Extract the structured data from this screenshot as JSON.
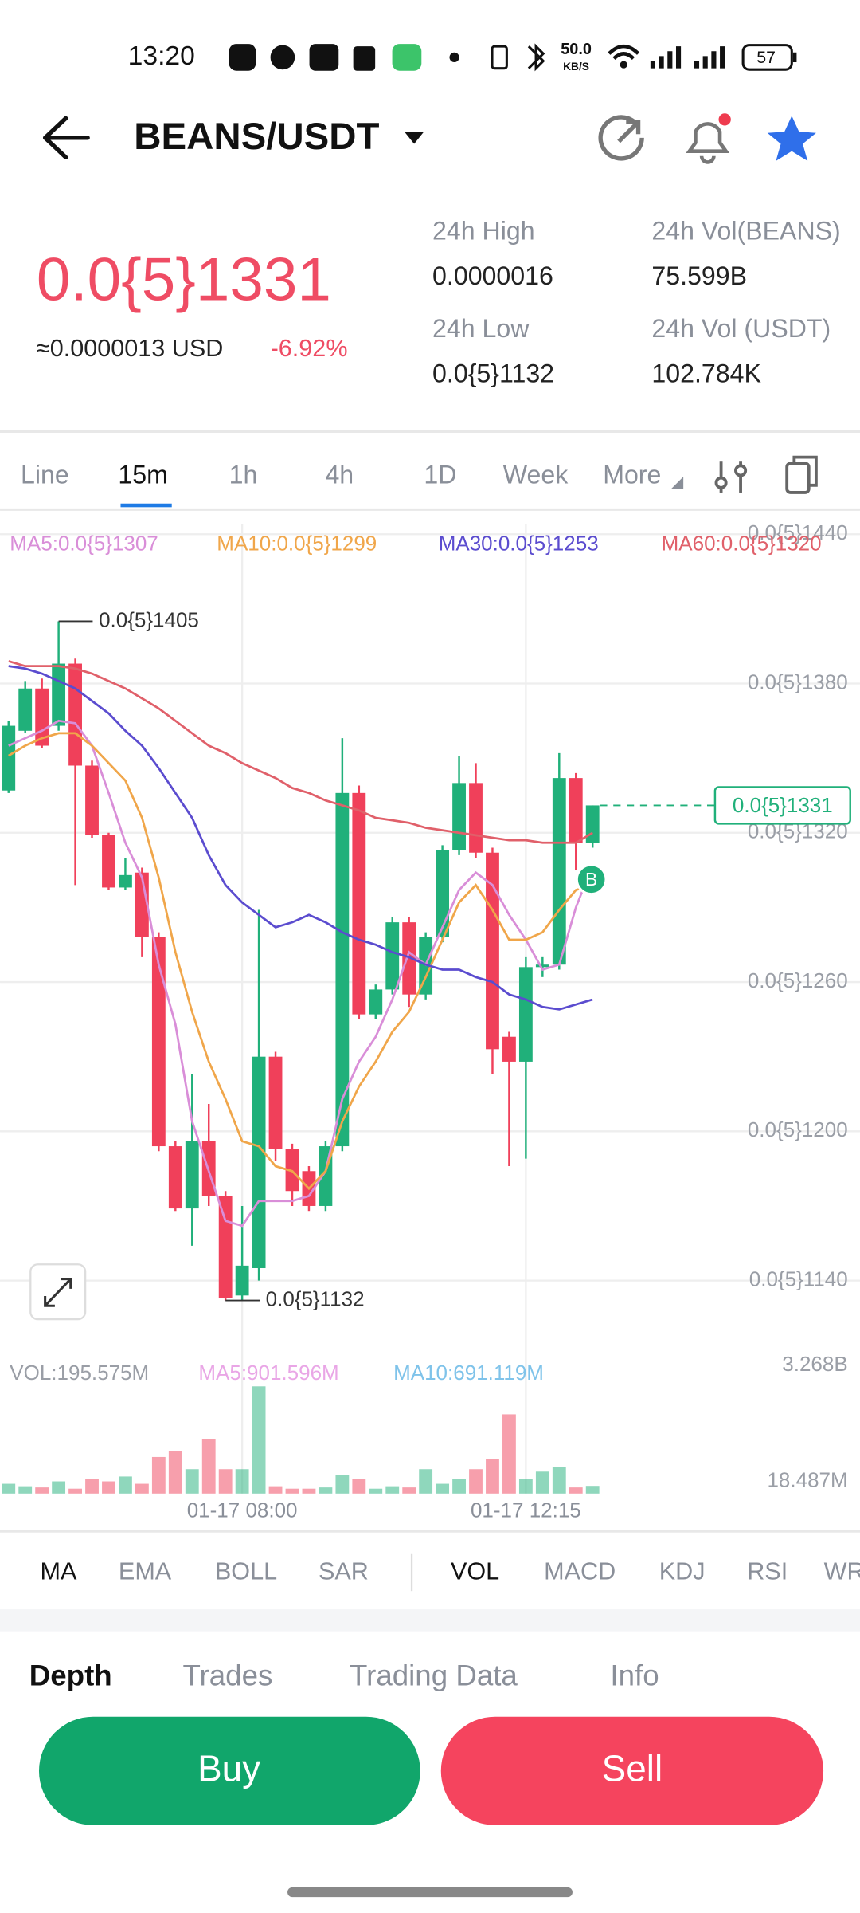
{
  "status_bar": {
    "time": "13:20",
    "net_speed": "50.0",
    "net_unit": "KB/S",
    "battery": "57"
  },
  "header": {
    "pair": "BEANS/USDT"
  },
  "ticker": {
    "price": "0.0{5}1331",
    "usd": "≈0.0000013 USD",
    "change": "-6.92%",
    "stats": [
      {
        "label": "24h High",
        "value": "0.0000016"
      },
      {
        "label": "24h Vol(BEANS)",
        "value": "75.599B"
      },
      {
        "label": "24h Low",
        "value": "0.0{5}1132"
      },
      {
        "label": "24h Vol (USDT)",
        "value": "102.784K"
      }
    ]
  },
  "tabs": [
    "Line",
    "15m",
    "1h",
    "4h",
    "1D",
    "Week",
    "More"
  ],
  "chart_data": {
    "type": "candlestick",
    "categories": [
      null,
      null,
      null,
      null,
      null,
      null,
      null,
      null,
      null,
      null,
      null,
      null,
      null,
      null,
      "01-17 08:00",
      null,
      null,
      null,
      null,
      null,
      null,
      null,
      null,
      null,
      null,
      null,
      null,
      null,
      null,
      null,
      null,
      "01-17 12:15",
      null,
      null,
      null,
      null
    ],
    "open": [
      1.337e-06,
      1.361e-06,
      1.378e-06,
      1.363e-06,
      1.388e-06,
      1.347e-06,
      1.319e-06,
      1.298e-06,
      1.304e-06,
      1.278e-06,
      1.194e-06,
      1.169e-06,
      1.196e-06,
      1.174e-06,
      1.134e-06,
      1.145e-06,
      1.23e-06,
      1.193e-06,
      1.184e-06,
      1.17e-06,
      1.194e-06,
      1.336e-06,
      1.247e-06,
      1.257e-06,
      1.284e-06,
      1.255e-06,
      1.278e-06,
      1.313e-06,
      1.34e-06,
      1.312e-06,
      1.238e-06,
      1.228e-06,
      1.266e-06,
      1.267e-06,
      1.342e-06,
      1.316e-06
    ],
    "high": [
      1.365e-06,
      1.381e-06,
      1.382e-06,
      1.405e-06,
      1.39e-06,
      1.349e-06,
      1.32e-06,
      1.31e-06,
      1.306e-06,
      1.28e-06,
      1.196e-06,
      1.223e-06,
      1.211e-06,
      1.176e-06,
      1.17e-06,
      1.289e-06,
      1.232e-06,
      1.195e-06,
      1.186e-06,
      1.196e-06,
      1.358e-06,
      1.339e-06,
      1.259e-06,
      1.286e-06,
      1.286e-06,
      1.28e-06,
      1.315e-06,
      1.351e-06,
      1.348e-06,
      1.314e-06,
      1.24e-06,
      1.27e-06,
      1.27e-06,
      1.352e-06,
      1.344e-06,
      1.331e-06
    ],
    "low": [
      1.336e-06,
      1.36e-06,
      1.354e-06,
      1.361e-06,
      1.299e-06,
      1.318e-06,
      1.297e-06,
      1.297e-06,
      1.27e-06,
      1.192e-06,
      1.168e-06,
      1.154e-06,
      1.17e-06,
      1.132e-06,
      1.132e-06,
      1.14e-06,
      1.188e-06,
      1.17e-06,
      1.168e-06,
      1.168e-06,
      1.192e-06,
      1.245e-06,
      1.245e-06,
      1.255e-06,
      1.25e-06,
      1.253e-06,
      1.276e-06,
      1.311e-06,
      1.31e-06,
      1.223e-06,
      1.186e-06,
      1.189e-06,
      1.262e-06,
      1.265e-06,
      1.305e-06,
      1.314e-06
    ],
    "close": [
      1.363e-06,
      1.378e-06,
      1.355e-06,
      1.388e-06,
      1.347e-06,
      1.319e-06,
      1.298e-06,
      1.303e-06,
      1.278e-06,
      1.194e-06,
      1.169e-06,
      1.196e-06,
      1.174e-06,
      1.133e-06,
      1.146e-06,
      1.23e-06,
      1.193e-06,
      1.176e-06,
      1.17e-06,
      1.194e-06,
      1.336e-06,
      1.247e-06,
      1.257e-06,
      1.284e-06,
      1.255e-06,
      1.278e-06,
      1.313e-06,
      1.34e-06,
      1.312e-06,
      1.233e-06,
      1.228e-06,
      1.266e-06,
      1.267e-06,
      1.342e-06,
      1.316e-06,
      1.331e-06
    ],
    "up_color": "#20b07a",
    "down_color": "#f0405a",
    "series": [
      {
        "name": "MA5:0.0{5}1307",
        "color": "#d98ed8",
        "values": [
          1.355e-06,
          1.358e-06,
          1.361e-06,
          1.365e-06,
          1.364e-06,
          1.355e-06,
          1.336e-06,
          1.316e-06,
          1.302e-06,
          1.267e-06,
          1.243e-06,
          1.204e-06,
          1.184e-06,
          1.164e-06,
          1.162e-06,
          1.172e-06,
          1.172e-06,
          1.172e-06,
          1.174e-06,
          1.184e-06,
          1.213e-06,
          1.228e-06,
          1.238e-06,
          1.253e-06,
          1.272e-06,
          1.267e-06,
          1.282e-06,
          1.297e-06,
          1.304e-06,
          1.299e-06,
          1.287e-06,
          1.277e-06,
          1.265e-06,
          1.267e-06,
          1.29e-06,
          1.307e-06
        ]
      },
      {
        "name": "MA10:0.0{5}1299",
        "color": "#f0a64a",
        "values": [
          1.351e-06,
          1.355e-06,
          1.358e-06,
          1.36e-06,
          1.36e-06,
          1.355e-06,
          1.348e-06,
          1.341e-06,
          1.326e-06,
          1.302e-06,
          1.272e-06,
          1.248e-06,
          1.228e-06,
          1.213e-06,
          1.196e-06,
          1.194e-06,
          1.186e-06,
          1.184e-06,
          1.177e-06,
          1.184e-06,
          1.204e-06,
          1.218e-06,
          1.228e-06,
          1.24e-06,
          1.248e-06,
          1.262e-06,
          1.277e-06,
          1.292e-06,
          1.299e-06,
          1.289e-06,
          1.277e-06,
          1.277e-06,
          1.28e-06,
          1.289e-06,
          1.297e-06,
          1.299e-06
        ]
      },
      {
        "name": "MA30:0.0{5}1253",
        "color": "#5b4ccf",
        "values": [
          1.387e-06,
          1.386e-06,
          1.384e-06,
          1.381e-06,
          1.378e-06,
          1.373e-06,
          1.368e-06,
          1.361e-06,
          1.355e-06,
          1.346e-06,
          1.336e-06,
          1.326e-06,
          1.311e-06,
          1.299e-06,
          1.292e-06,
          1.287e-06,
          1.282e-06,
          1.284e-06,
          1.287e-06,
          1.284e-06,
          1.28e-06,
          1.277e-06,
          1.275e-06,
          1.272e-06,
          1.27e-06,
          1.267e-06,
          1.265e-06,
          1.265e-06,
          1.262e-06,
          1.26e-06,
          1.255e-06,
          1.253e-06,
          1.25e-06,
          1.249e-06,
          1.251e-06,
          1.253e-06
        ]
      },
      {
        "name": "MA60:0.0{5}1320",
        "color": "#e0606a",
        "values": [
          1.389e-06,
          1.387e-06,
          1.387e-06,
          1.387e-06,
          1.386e-06,
          1.384e-06,
          1.381e-06,
          1.378e-06,
          1.374e-06,
          1.37e-06,
          1.365e-06,
          1.36e-06,
          1.355e-06,
          1.352e-06,
          1.348e-06,
          1.345e-06,
          1.342e-06,
          1.338e-06,
          1.336e-06,
          1.333e-06,
          1.331e-06,
          1.329e-06,
          1.326e-06,
          1.325e-06,
          1.324e-06,
          1.322e-06,
          1.321e-06,
          1.32e-06,
          1.319e-06,
          1.318e-06,
          1.317e-06,
          1.317e-06,
          1.316e-06,
          1.316e-06,
          1.316e-06,
          1.32e-06
        ]
      }
    ],
    "ylim": [
      1.123e-06,
      1.444e-06
    ],
    "yticks": [
      {
        "value": 1.44e-06,
        "label": "0.0{5}1440"
      },
      {
        "value": 1.38e-06,
        "label": "0.0{5}1380"
      },
      {
        "value": 1.32e-06,
        "label": "0.0{5}1320"
      },
      {
        "value": 1.26e-06,
        "label": "0.0{5}1260"
      },
      {
        "value": 1.2e-06,
        "label": "0.0{5}1200"
      },
      {
        "value": 1.14e-06,
        "label": "0.0{5}1140"
      }
    ],
    "grid": true,
    "high_label": "0.0{5}1405",
    "low_label": "0.0{5}1132",
    "last_price_label": "0.0{5}1331",
    "marker": "B",
    "volume": {
      "label": "VOL:195.575M",
      "ma_labels": [
        "MA5:901.596M",
        "MA10:691.119M"
      ],
      "values": [
        249000000,
        187000000,
        156000000,
        311000000,
        124000000,
        373000000,
        311000000,
        435000000,
        249000000,
        933000000,
        1089000000,
        622000000,
        1400000000,
        622000000,
        622000000,
        2737000000,
        187000000,
        124000000,
        124000000,
        156000000,
        467000000,
        373000000,
        124000000,
        187000000,
        156000000,
        622000000,
        249000000,
        373000000,
        622000000,
        871000000,
        2022000000,
        373000000,
        560000000,
        684000000,
        156000000,
        195575000
      ],
      "ylim": [
        0,
        3268000000
      ],
      "yticks": [
        {
          "value": 3268000000,
          "label": "3.268B"
        },
        {
          "value": 18487000,
          "label": "18.487M"
        }
      ]
    }
  },
  "indicators": {
    "main": [
      "MA",
      "EMA",
      "BOLL",
      "SAR"
    ],
    "sub": [
      "VOL",
      "MACD",
      "KDJ",
      "RSI",
      "WR"
    ]
  },
  "bottom_tabs": [
    "Depth",
    "Trades",
    "Trading Data",
    "Info"
  ],
  "buttons": {
    "buy": "Buy",
    "sell": "Sell"
  }
}
